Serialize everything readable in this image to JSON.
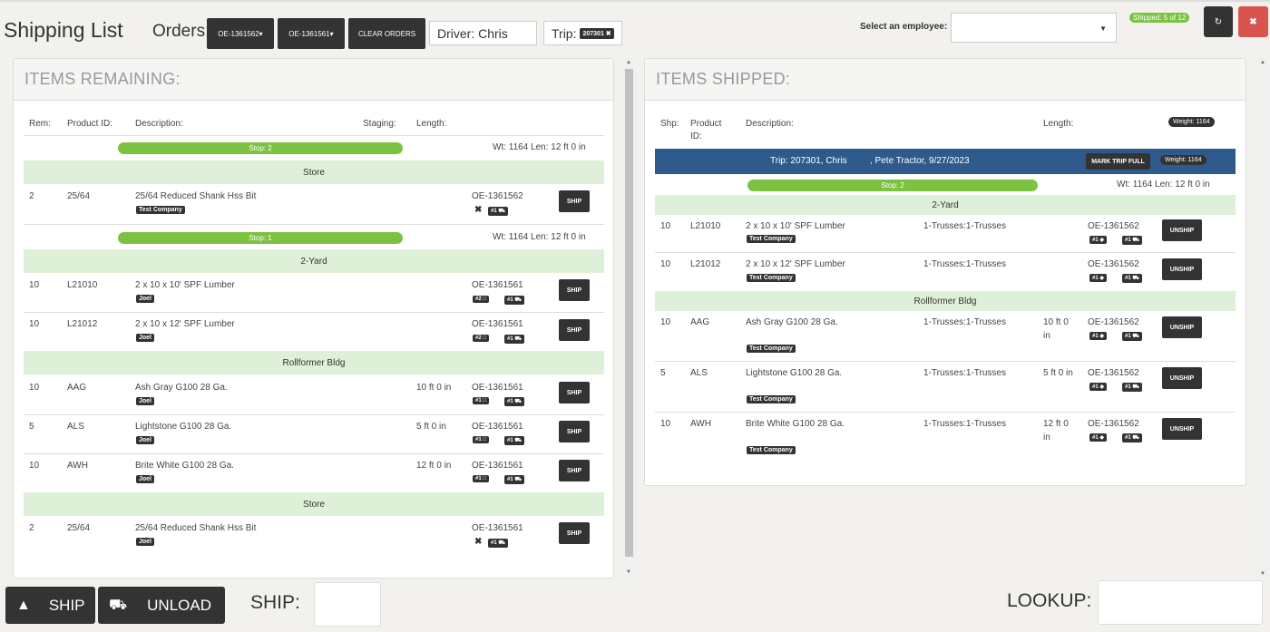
{
  "header": {
    "title": "Shipping List",
    "orders_label": "Orders:",
    "orders": [
      "OE-1361562",
      "OE-1361561"
    ],
    "clear_orders": "CLEAR ORDERS",
    "driver": "Driver: Chris",
    "trip_label": "Trip:",
    "trip_chip": "207301",
    "employee_label": "Select an employee:",
    "employee_value": "",
    "shipped_badge": "Shipped: 5 of 12"
  },
  "remaining": {
    "title": "ITEMS REMAINING:",
    "headers": {
      "rem": "Rem:",
      "product": "Product ID:",
      "desc": "Description:",
      "staging": "Staging:",
      "length": "Length:"
    },
    "stop2": {
      "label": "Stop: 2",
      "wt": "Wt: 1164  Len: 12 ft 0 in"
    },
    "store1": "Store",
    "row1": {
      "qty": "2",
      "pid": "25/64",
      "desc": "25/64 Reduced Shank Hss Bit",
      "company": "Test Company",
      "order": "OE-1361562",
      "chip1": "#1",
      "btn": "SHIP"
    },
    "stop1": {
      "label": "Stop: 1",
      "wt": "Wt: 1164  Len: 12 ft 0 in"
    },
    "yard": "2-Yard",
    "row2": {
      "qty": "10",
      "pid": "L21010",
      "desc": "2 x 10 x 10' SPF Lumber",
      "company": "Joel",
      "order": "OE-1361561",
      "chip1": "#2",
      "chip2": "#1",
      "btn": "SHIP"
    },
    "row3": {
      "qty": "10",
      "pid": "L21012",
      "desc": "2 x 10 x 12' SPF Lumber",
      "company": "Joel",
      "order": "OE-1361561",
      "chip1": "#2",
      "chip2": "#1",
      "btn": "SHIP"
    },
    "roll": "Rollformer Bldg",
    "row4": {
      "qty": "10",
      "pid": "AAG",
      "desc": "Ash Gray G100 28 Ga.",
      "company": "Joel",
      "len": "10 ft 0 in",
      "order": "OE-1361561",
      "chip1": "#1",
      "chip2": "#1",
      "btn": "SHIP"
    },
    "row5": {
      "qty": "5",
      "pid": "ALS",
      "desc": "Lightstone G100 28 Ga.",
      "company": "Joel",
      "len": "5 ft 0 in",
      "order": "OE-1361561",
      "chip1": "#1",
      "chip2": "#1",
      "btn": "SHIP"
    },
    "row6": {
      "qty": "10",
      "pid": "AWH",
      "desc": "Brite White G100 28 Ga.",
      "company": "Joel",
      "len": "12 ft 0 in",
      "order": "OE-1361561",
      "chip1": "#1",
      "chip2": "#1",
      "btn": "SHIP"
    },
    "store2": "Store",
    "row7": {
      "qty": "2",
      "pid": "25/64",
      "desc": "25/64 Reduced Shank Hss Bit",
      "company": "Joel",
      "order": "OE-1361561",
      "chip1": "#1",
      "btn": "SHIP"
    }
  },
  "shipped": {
    "title": "ITEMS SHIPPED:",
    "headers": {
      "shp": "Shp:",
      "product1": "Product",
      "product2": "ID:",
      "desc": "Description:",
      "length": "Length:",
      "weight": "Weight: 1164"
    },
    "trip_info_a": "Trip: 207301, Chris",
    "trip_info_b": ", Pete Tractor, 9/27/2023",
    "mark_full": "MARK TRIP FULL",
    "trip_weight": "Weight: 1164",
    "stop2": {
      "label": "Stop: 2",
      "wt": "Wt: 1164  Len: 12 ft 0 in"
    },
    "yard": "2-Yard",
    "row1": {
      "qty": "10",
      "pid": "L21010",
      "desc": "2 x 10 x 10' SPF Lumber",
      "company": "Test Company",
      "staging": "1-Trusses:1-Trusses",
      "order": "OE-1361562",
      "chip1": "#1",
      "chip2": "#1",
      "btn": "UNSHIP"
    },
    "row2": {
      "qty": "10",
      "pid": "L21012",
      "desc": "2 x 10 x 12' SPF Lumber",
      "company": "Test Company",
      "staging": "1-Trusses:1-Trusses",
      "order": "OE-1361562",
      "chip1": "#1",
      "chip2": "#1",
      "btn": "UNSHIP"
    },
    "roll": "Rollformer Bldg",
    "row3": {
      "qty": "10",
      "pid": "AAG",
      "desc": "Ash Gray G100 28 Ga.",
      "company": "Test Company",
      "staging": "1-Trusses:1-Trusses",
      "len1": "10 ft 0",
      "len2": "in",
      "order": "OE-1361562",
      "chip1": "#1",
      "chip2": "#1",
      "btn": "UNSHIP"
    },
    "row4": {
      "qty": "5",
      "pid": "ALS",
      "desc": "Lightstone G100 28 Ga.",
      "company": "Test Company",
      "staging": "1-Trusses:1-Trusses",
      "len1": "5 ft 0 in",
      "order": "OE-1361562",
      "chip1": "#1",
      "chip2": "#1",
      "btn": "UNSHIP"
    },
    "row5": {
      "qty": "10",
      "pid": "AWH",
      "desc": "Brite White G100 28 Ga.",
      "company": "Test Company",
      "staging": "1-Trusses:1-Trusses",
      "len1": "12 ft 0",
      "len2": "in",
      "order": "OE-1361562",
      "chip1": "#1",
      "chip2": "#1",
      "btn": "UNSHIP"
    }
  },
  "footer": {
    "ship_btn": "SHIP",
    "unload_btn": "UNLOAD",
    "ship_label": "SHIP:",
    "lookup_label": "LOOKUP:"
  },
  "colors": {
    "green": "#7cc242",
    "dark": "#333333",
    "blue": "#2f5b8c",
    "group": "#dff0d8",
    "red": "#d9534f"
  }
}
